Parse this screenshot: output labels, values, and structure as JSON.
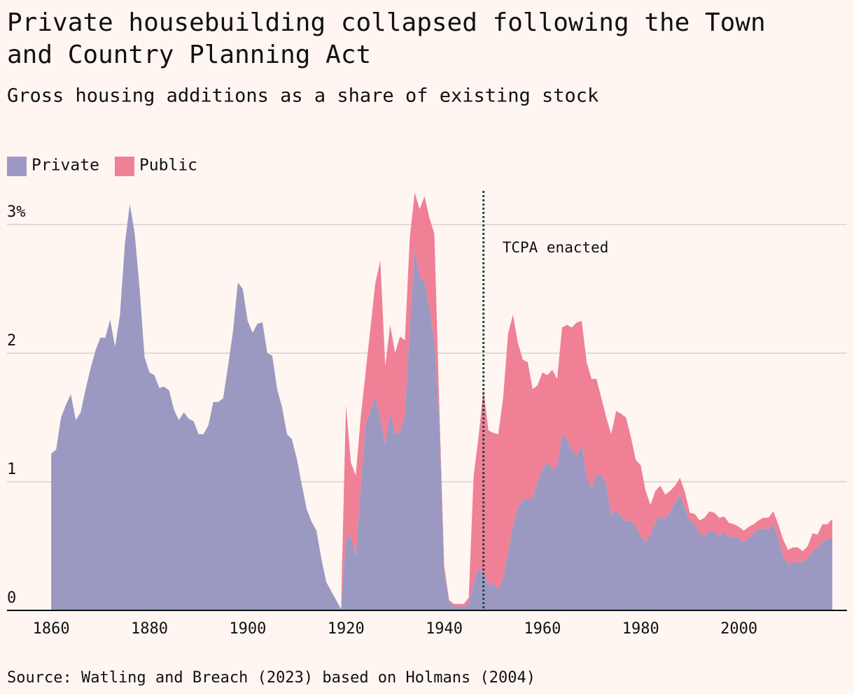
{
  "chart_data": {
    "type": "stacked_area",
    "title": "Private housebuilding collapsed following the Town and Country Planning Act",
    "subtitle": "Gross housing additions as a share of existing stock",
    "source": "Source: Watling and Breach (2023) based on Holmans (2004)",
    "legend": "top-left",
    "grid": true,
    "xlim": [
      1851,
      2022
    ],
    "ylim": [
      0,
      3.3
    ],
    "xticks": [
      1860,
      1880,
      1900,
      1920,
      1940,
      1960,
      1980,
      2000
    ],
    "yticks": [
      0,
      1,
      2,
      {
        "value": 3,
        "label": "3%"
      }
    ],
    "annotation": {
      "x": 1948,
      "text": "TCPA enacted",
      "color": "#1f4a3f"
    },
    "x": [
      1860,
      1861,
      1862,
      1863,
      1864,
      1865,
      1866,
      1867,
      1868,
      1869,
      1870,
      1871,
      1872,
      1873,
      1874,
      1875,
      1876,
      1877,
      1878,
      1879,
      1880,
      1881,
      1882,
      1883,
      1884,
      1885,
      1886,
      1887,
      1888,
      1889,
      1890,
      1891,
      1892,
      1893,
      1894,
      1895,
      1896,
      1897,
      1898,
      1899,
      1900,
      1901,
      1902,
      1903,
      1904,
      1905,
      1906,
      1907,
      1908,
      1909,
      1910,
      1911,
      1912,
      1913,
      1914,
      1915,
      1916,
      1917,
      1918,
      1919,
      1920,
      1921,
      1922,
      1923,
      1924,
      1925,
      1926,
      1927,
      1928,
      1929,
      1930,
      1931,
      1932,
      1933,
      1934,
      1935,
      1936,
      1937,
      1938,
      1939,
      1940,
      1941,
      1942,
      1943,
      1944,
      1945,
      1946,
      1947,
      1948,
      1949,
      1950,
      1951,
      1952,
      1953,
      1954,
      1955,
      1956,
      1957,
      1958,
      1959,
      1960,
      1961,
      1962,
      1963,
      1964,
      1965,
      1966,
      1967,
      1968,
      1969,
      1970,
      1971,
      1972,
      1973,
      1974,
      1975,
      1976,
      1977,
      1978,
      1979,
      1980,
      1981,
      1982,
      1983,
      1984,
      1985,
      1986,
      1987,
      1988,
      1989,
      1990,
      1991,
      1992,
      1993,
      1994,
      1995,
      1996,
      1997,
      1998,
      1999,
      2000,
      2001,
      2002,
      2003,
      2004,
      2005,
      2006,
      2007,
      2008,
      2009,
      2010,
      2011,
      2012,
      2013,
      2014,
      2015,
      2016,
      2017,
      2018,
      2019
    ],
    "series": [
      {
        "name": "Private",
        "color": "#9b99c2",
        "values": [
          1.22,
          1.25,
          1.5,
          1.6,
          1.68,
          1.48,
          1.54,
          1.72,
          1.88,
          2.02,
          2.12,
          2.12,
          2.26,
          2.05,
          2.3,
          2.85,
          3.16,
          2.93,
          2.5,
          1.97,
          1.85,
          1.83,
          1.73,
          1.74,
          1.71,
          1.56,
          1.48,
          1.54,
          1.49,
          1.47,
          1.37,
          1.37,
          1.44,
          1.62,
          1.62,
          1.65,
          1.9,
          2.17,
          2.55,
          2.5,
          2.25,
          2.16,
          2.23,
          2.24,
          2.0,
          1.98,
          1.72,
          1.58,
          1.37,
          1.33,
          1.18,
          0.98,
          0.79,
          0.69,
          0.62,
          0.4,
          0.22,
          0.15,
          0.08,
          0.01,
          0.55,
          0.58,
          0.42,
          0.95,
          1.45,
          1.55,
          1.67,
          1.5,
          1.29,
          1.54,
          1.38,
          1.38,
          1.52,
          2.2,
          2.8,
          2.6,
          2.55,
          2.35,
          2.1,
          1.5,
          0.3,
          0.07,
          0.03,
          0.03,
          0.03,
          0.05,
          0.22,
          0.32,
          0.3,
          0.2,
          0.21,
          0.16,
          0.25,
          0.45,
          0.65,
          0.8,
          0.86,
          0.87,
          0.87,
          1.0,
          1.1,
          1.15,
          1.1,
          1.12,
          1.37,
          1.33,
          1.25,
          1.2,
          1.29,
          1.04,
          0.95,
          1.06,
          1.05,
          0.98,
          0.74,
          0.78,
          0.73,
          0.69,
          0.7,
          0.65,
          0.58,
          0.53,
          0.59,
          0.69,
          0.73,
          0.71,
          0.77,
          0.84,
          0.9,
          0.8,
          0.7,
          0.67,
          0.6,
          0.58,
          0.62,
          0.61,
          0.58,
          0.61,
          0.57,
          0.57,
          0.56,
          0.53,
          0.56,
          0.6,
          0.63,
          0.64,
          0.63,
          0.68,
          0.56,
          0.42,
          0.36,
          0.38,
          0.37,
          0.38,
          0.4,
          0.46,
          0.49,
          0.54,
          0.55,
          0.57
        ]
      },
      {
        "name": "Public",
        "color": "#ef8096",
        "values": [
          0,
          0,
          0,
          0,
          0,
          0,
          0,
          0,
          0,
          0,
          0,
          0,
          0,
          0,
          0,
          0,
          0,
          0,
          0,
          0,
          0,
          0,
          0,
          0,
          0,
          0,
          0,
          0,
          0,
          0,
          0,
          0,
          0,
          0,
          0,
          0,
          0,
          0,
          0,
          0,
          0,
          0,
          0,
          0,
          0,
          0,
          0,
          0,
          0,
          0,
          0,
          0,
          0,
          0,
          0,
          0,
          0,
          0,
          0,
          0,
          1.05,
          0.57,
          0.63,
          0.55,
          0.4,
          0.65,
          0.88,
          1.22,
          0.61,
          0.68,
          0.62,
          0.75,
          0.58,
          0.7,
          0.45,
          0.52,
          0.67,
          0.7,
          0.83,
          0.1,
          0.05,
          0.01,
          0.02,
          0.02,
          0.02,
          0.05,
          0.83,
          1.03,
          1.42,
          1.2,
          1.17,
          1.21,
          1.4,
          1.7,
          1.65,
          1.28,
          1.09,
          1.06,
          0.85,
          0.75,
          0.75,
          0.68,
          0.77,
          0.68,
          0.83,
          0.89,
          0.95,
          1.04,
          0.96,
          0.89,
          0.85,
          0.74,
          0.6,
          0.52,
          0.63,
          0.77,
          0.8,
          0.81,
          0.65,
          0.52,
          0.55,
          0.4,
          0.23,
          0.24,
          0.24,
          0.19,
          0.16,
          0.13,
          0.13,
          0.12,
          0.06,
          0.08,
          0.1,
          0.14,
          0.15,
          0.15,
          0.14,
          0.12,
          0.11,
          0.1,
          0.09,
          0.09,
          0.09,
          0.07,
          0.07,
          0.08,
          0.09,
          0.09,
          0.11,
          0.13,
          0.11,
          0.11,
          0.12,
          0.08,
          0.1,
          0.14,
          0.1,
          0.13,
          0.12,
          0.14
        ]
      }
    ]
  }
}
